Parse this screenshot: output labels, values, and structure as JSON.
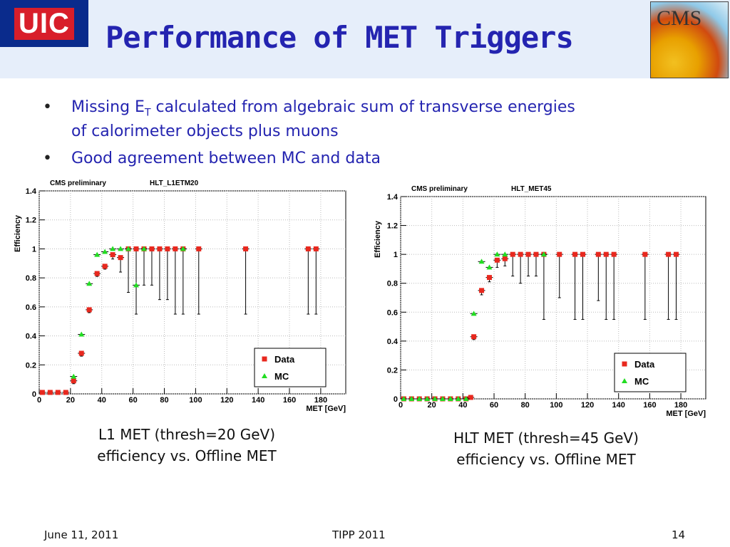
{
  "logo_left": "UIC",
  "logo_right": "CMS",
  "title": "Performance of MET Triggers",
  "bullets": [
    {
      "text": "Missing E",
      "sub": "T",
      "rest": " calculated from algebraic sum of transverse energies",
      "line2": "of calorimeter objects plus muons"
    },
    {
      "text": "Good agreement between MC and data"
    }
  ],
  "captions": [
    {
      "line1": "L1 MET (thresh=20 GeV)",
      "line2": "efficiency vs. Offline MET"
    },
    {
      "line1": "HLT MET (thresh=45 GeV)",
      "line2": "efficiency vs. Offline MET"
    }
  ],
  "footer": {
    "date": "June 11, 2011",
    "event": "TIPP 2011",
    "page": "14"
  },
  "chart_data": [
    {
      "type": "scatter",
      "label_left": "CMS preliminary",
      "label_right": "HLT_L1ETM20",
      "x_label": "MET [GeV]",
      "y_label": "Efficiency",
      "grid": true,
      "legend": "lower right",
      "xlim": [
        0,
        196
      ],
      "xticks": [
        0,
        20,
        40,
        60,
        80,
        100,
        120,
        140,
        160,
        180
      ],
      "ylim": [
        0,
        1.4
      ],
      "yticks": [
        0,
        0.2,
        0.4,
        0.6,
        0.8,
        1,
        1.2,
        1.4
      ],
      "series": [
        {
          "name": "Data",
          "color": "#e8281e",
          "marker": "square",
          "x": [
            2,
            7,
            12,
            17,
            22,
            27,
            32,
            37,
            42,
            47,
            52,
            57,
            62,
            67,
            72,
            77,
            82,
            87,
            92,
            102,
            132,
            172,
            177
          ],
          "values": [
            0.01,
            0.01,
            0.01,
            0.01,
            0.09,
            0.28,
            0.58,
            0.83,
            0.88,
            0.96,
            0.94,
            1,
            1,
            1,
            1,
            1,
            1,
            1,
            1,
            1,
            1,
            1,
            1
          ],
          "errors": [
            0.01,
            0.01,
            0.01,
            0.01,
            0.02,
            0.02,
            0.02,
            0.02,
            0.02,
            0.03,
            0.1,
            0.3,
            0.45,
            0.25,
            0.25,
            0.35,
            0.35,
            0.45,
            0.45,
            0.45,
            0.45,
            0.45,
            0.45
          ]
        },
        {
          "name": "MC",
          "color": "#22dd22",
          "marker": "triangle",
          "x": [
            22,
            27,
            32,
            37,
            42,
            47,
            52,
            57,
            62,
            67,
            92
          ],
          "values": [
            0.12,
            0.41,
            0.76,
            0.96,
            0.98,
            1,
            1,
            1,
            0.75,
            1,
            1
          ]
        }
      ]
    },
    {
      "type": "scatter",
      "label_left": "CMS preliminary",
      "label_right": "HLT_MET45",
      "x_label": "MET [GeV]",
      "y_label": "Efficiency",
      "grid": true,
      "legend": "lower right",
      "xlim": [
        0,
        196
      ],
      "xticks": [
        0,
        20,
        40,
        60,
        80,
        100,
        120,
        140,
        160,
        180
      ],
      "ylim": [
        0,
        1.4
      ],
      "yticks": [
        0,
        0.2,
        0.4,
        0.6,
        0.8,
        1,
        1.2,
        1.4
      ],
      "series": [
        {
          "name": "Data",
          "color": "#e8281e",
          "marker": "square",
          "x": [
            2,
            7,
            12,
            17,
            22,
            27,
            32,
            37,
            42,
            45,
            47,
            52,
            57,
            62,
            67,
            72,
            77,
            82,
            87,
            92,
            102,
            112,
            117,
            127,
            132,
            137,
            157,
            172,
            177
          ],
          "values": [
            0,
            0,
            0,
            0,
            0,
            0,
            0,
            0,
            0,
            0.01,
            0.43,
            0.75,
            0.84,
            0.96,
            0.97,
            1,
            1,
            1,
            1,
            1,
            1,
            1,
            1,
            1,
            1,
            1,
            1,
            1,
            1
          ],
          "errors": [
            0.01,
            0.01,
            0.01,
            0.01,
            0.01,
            0.01,
            0.01,
            0.01,
            0.01,
            0.01,
            0.02,
            0.03,
            0.03,
            0.05,
            0.05,
            0.15,
            0.2,
            0.15,
            0.15,
            0.45,
            0.3,
            0.45,
            0.45,
            0.32,
            0.45,
            0.45,
            0.45,
            0.45,
            0.45
          ]
        },
        {
          "name": "MC",
          "color": "#22dd22",
          "marker": "triangle",
          "x": [
            2,
            7,
            12,
            17,
            22,
            27,
            32,
            37,
            42,
            47,
            52,
            57,
            62,
            67,
            92
          ],
          "values": [
            0,
            0,
            0,
            0,
            0,
            0,
            0,
            0,
            0,
            0.59,
            0.95,
            0.91,
            1,
            1,
            1
          ]
        }
      ]
    }
  ]
}
